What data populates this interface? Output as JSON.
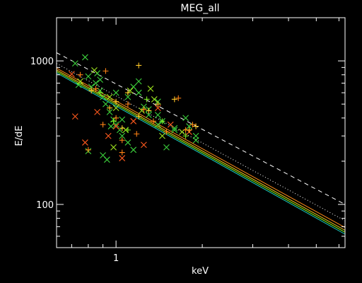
{
  "chart_data": {
    "type": "scatter",
    "title": "MEG_all",
    "xlabel": "keV",
    "ylabel": "E/dE",
    "xscale": "log",
    "yscale": "log",
    "xlim": [
      0.62,
      6.3
    ],
    "ylim": [
      50,
      2000
    ],
    "x_ticks": [
      {
        "value": 1,
        "label": "1"
      }
    ],
    "y_ticks": [
      {
        "value": 100,
        "label": "100"
      },
      {
        "value": 1000,
        "label": "1000"
      }
    ],
    "background": "#000000",
    "lines": [
      {
        "name": "",
        "color": "#ffffff",
        "dash": "6,5",
        "points": [
          [
            0.62,
            1140
          ],
          [
            6.3,
            100
          ]
        ]
      },
      {
        "name": "",
        "color": "#ffffff",
        "dash": "1,3",
        "points": [
          [
            0.62,
            960
          ],
          [
            6.3,
            77
          ]
        ]
      },
      {
        "name": "",
        "color": "#ff8c1a",
        "dash": "",
        "points": [
          [
            0.62,
            890
          ],
          [
            6.3,
            69
          ]
        ]
      },
      {
        "name": "",
        "color": "#ffd21a",
        "dash": "",
        "points": [
          [
            0.62,
            865
          ],
          [
            6.3,
            66
          ]
        ]
      },
      {
        "name": "",
        "color": "#8cff1a",
        "dash": "",
        "points": [
          [
            0.62,
            845
          ],
          [
            6.3,
            64
          ]
        ]
      },
      {
        "name": "",
        "color": "#1ad7c8",
        "dash": "",
        "points": [
          [
            0.62,
            825
          ],
          [
            6.3,
            62
          ]
        ]
      }
    ],
    "series": [
      {
        "name": "",
        "marker": "x",
        "color": "#3cd23c",
        "points": [
          [
            0.72,
            960
          ],
          [
            0.78,
            1060
          ],
          [
            0.8,
            780
          ],
          [
            0.85,
            700
          ],
          [
            0.82,
            660
          ],
          [
            0.88,
            620
          ],
          [
            0.9,
            560
          ],
          [
            0.92,
            500
          ],
          [
            0.95,
            440
          ],
          [
            0.98,
            390
          ],
          [
            1.0,
            360
          ],
          [
            1.03,
            330
          ],
          [
            1.05,
            300
          ],
          [
            1.1,
            560
          ],
          [
            1.15,
            660
          ],
          [
            1.2,
            720
          ],
          [
            1.25,
            480
          ],
          [
            1.3,
            420
          ],
          [
            1.4,
            520
          ],
          [
            1.45,
            380
          ],
          [
            1.6,
            340
          ],
          [
            1.75,
            400
          ],
          [
            1.9,
            300
          ],
          [
            0.9,
            220
          ],
          [
            0.93,
            205
          ],
          [
            0.8,
            235
          ],
          [
            1.05,
            390
          ],
          [
            1.1,
            270
          ],
          [
            1.3,
            460
          ],
          [
            1.4,
            420
          ],
          [
            0.74,
            680
          ],
          [
            0.86,
            820
          ],
          [
            1.2,
            600
          ],
          [
            1.4,
            360
          ],
          [
            1.6,
            330
          ],
          [
            1.8,
            350
          ],
          [
            1.9,
            280
          ],
          [
            0.96,
            350
          ],
          [
            1.0,
            600
          ],
          [
            1.15,
            240
          ],
          [
            1.5,
            250
          ],
          [
            0.88,
            740
          ]
        ]
      },
      {
        "name": "",
        "marker": "x",
        "color": "#a0e61e",
        "points": [
          [
            0.75,
            720
          ],
          [
            0.84,
            860
          ],
          [
            0.95,
            560
          ],
          [
            1.0,
            470
          ],
          [
            1.08,
            330
          ],
          [
            1.12,
            620
          ],
          [
            1.32,
            640
          ],
          [
            1.36,
            540
          ],
          [
            1.7,
            320
          ],
          [
            0.98,
            250
          ],
          [
            1.23,
            450
          ],
          [
            1.45,
            300
          ]
        ]
      },
      {
        "name": "",
        "marker": "x",
        "color": "#ff5a1e",
        "points": [
          [
            0.7,
            810
          ],
          [
            0.72,
            410
          ],
          [
            0.78,
            270
          ],
          [
            0.86,
            440
          ],
          [
            0.94,
            300
          ],
          [
            1.05,
            210
          ],
          [
            1.25,
            260
          ],
          [
            1.15,
            380
          ],
          [
            1.8,
            320
          ],
          [
            1.0,
            350
          ],
          [
            1.4,
            470
          ],
          [
            1.55,
            360
          ]
        ]
      },
      {
        "name": "",
        "marker": "+",
        "color": "#ff8214",
        "points": [
          [
            0.75,
            800
          ],
          [
            0.8,
            240
          ],
          [
            0.85,
            640
          ],
          [
            0.9,
            360
          ],
          [
            1.0,
            400
          ],
          [
            1.05,
            280
          ],
          [
            1.1,
            500
          ],
          [
            1.25,
            460
          ],
          [
            1.35,
            380
          ],
          [
            1.5,
            320
          ],
          [
            1.85,
            360
          ],
          [
            0.92,
            850
          ],
          [
            1.05,
            230
          ],
          [
            1.18,
            310
          ],
          [
            1.65,
            550
          ],
          [
            1.75,
            330
          ]
        ]
      },
      {
        "name": "",
        "marker": "+",
        "color": "#ffc828",
        "points": [
          [
            1.2,
            930
          ],
          [
            1.1,
            600
          ],
          [
            1.2,
            410
          ],
          [
            1.3,
            450
          ],
          [
            1.6,
            540
          ],
          [
            1.9,
            350
          ],
          [
            0.95,
            470
          ],
          [
            1.05,
            340
          ],
          [
            1.4,
            500
          ],
          [
            1.8,
            330
          ],
          [
            1.0,
            520
          ],
          [
            0.82,
            620
          ]
        ]
      },
      {
        "name": "",
        "marker": "+",
        "color": "#78e61e",
        "points": [
          [
            0.88,
            600
          ],
          [
            1.1,
            330
          ],
          [
            1.28,
            540
          ],
          [
            1.45,
            380
          ],
          [
            1.75,
            300
          ],
          [
            0.98,
            380
          ]
        ]
      }
    ]
  }
}
